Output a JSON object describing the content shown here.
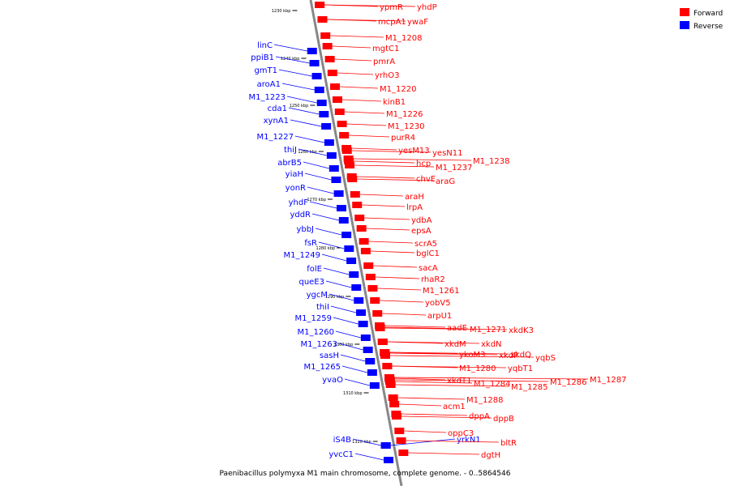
{
  "colors": {
    "forward": "#ff0000",
    "reverse": "#0000ff",
    "backbone": "#888888",
    "text": "#000000"
  },
  "legend": [
    {
      "label": "Forward",
      "color": "#ff0000"
    },
    {
      "label": "Reverse",
      "color": "#0000ff"
    }
  ],
  "caption": "Paenibacillus polymyxa M1 main chromosome, complete genome. - 0..5864546",
  "ticks": [
    "1230 kbp",
    "1240 kbp",
    "1250 kbp",
    "1260 kbp",
    "1270 kbp",
    "1280 kbp",
    "1290 kbp",
    "1300 kbp",
    "1310 kbp",
    "1320 kbp"
  ],
  "forward_genes": [
    "ypmR",
    "yhdP",
    "mcpA1",
    "ywaF",
    "M1_1208",
    "mgtC1",
    "pmrA",
    "yrhO3",
    "M1_1220",
    "kinB1",
    "M1_1226",
    "M1_1230",
    "purR4",
    "yesM13",
    "yesN11",
    "hcp",
    "M1_1237",
    "M1_1238",
    "chvE",
    "araG",
    "araH",
    "lrpA",
    "ydbA",
    "epsA",
    "scrA5",
    "bglC1",
    "sacA",
    "rhaR2",
    "M1_1261",
    "yobV5",
    "arpU1",
    "aadE",
    "M1_1271",
    "xkdK3",
    "xkdM",
    "xkdN",
    "ykoM3",
    "xkdP",
    "xkdQ",
    "yqbS",
    "M1_1280",
    "yqbT1",
    "xkdT1",
    "M1_1284",
    "M1_1285",
    "M1_1286",
    "M1_1287",
    "M1_1288",
    "acm1",
    "dppA",
    "dppB",
    "oppC3",
    "bltR",
    "dgtH"
  ],
  "reverse_genes": [
    "linC",
    "ppiB1",
    "gmT1",
    "aroA1",
    "M1_1223",
    "cda1",
    "xynA1",
    "M1_1227",
    "thiJ",
    "abrB5",
    "yiaH",
    "yonR",
    "yhdF",
    "yddR",
    "ybbJ",
    "fsR",
    "M1_1249",
    "folE",
    "queE3",
    "ygcM",
    "thiI",
    "M1_1259",
    "M1_1260",
    "M1_1263",
    "sasH",
    "M1_1265",
    "yvaO",
    "iS4B",
    "yvcC1",
    "yrkN1"
  ]
}
